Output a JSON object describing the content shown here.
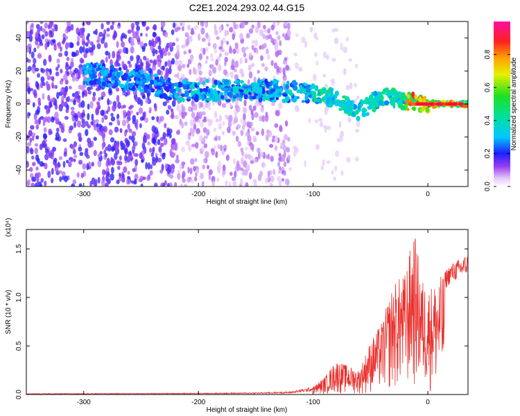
{
  "title": "C2E1.2024.293.02.44.G15",
  "chart_data": [
    {
      "type": "heatmap",
      "xlabel": "Height of straight line (km)",
      "ylabel": "Frequency (Hz)",
      "xlim": [
        -350,
        35
      ],
      "ylim": [
        -50,
        50
      ],
      "xticks": [
        -300,
        -200,
        -100,
        0
      ],
      "yticks": [
        -40,
        -20,
        0,
        20,
        40
      ],
      "colorbar": {
        "label": "Normalized spectral amplitude",
        "range": [
          0.0,
          1.0
        ],
        "ticks": [
          0.0,
          0.2,
          0.4,
          0.6,
          0.8
        ]
      },
      "ridge": {
        "description_points": [
          {
            "x": -290,
            "freq": 18
          },
          {
            "x": -250,
            "freq": 14
          },
          {
            "x": -220,
            "freq": 8
          },
          {
            "x": -180,
            "freq": 8
          },
          {
            "x": -140,
            "freq": 8
          },
          {
            "x": -100,
            "freq": 7
          },
          {
            "x": -80,
            "freq": 3
          },
          {
            "x": -60,
            "freq": -5
          },
          {
            "x": -40,
            "freq": 5
          },
          {
            "x": -20,
            "freq": 2
          },
          {
            "x": 0,
            "freq": 0
          },
          {
            "x": 35,
            "freq": 0
          }
        ]
      },
      "grid": false
    },
    {
      "type": "line",
      "xlabel": "Height of straight line (km)",
      "ylabel": "SNR (10 * v/v)",
      "y_multiplier": "(x10⁴)",
      "xlim": [
        -350,
        35
      ],
      "ylim": [
        0,
        1.7
      ],
      "xticks": [
        -300,
        -200,
        -100,
        0
      ],
      "yticks": [
        0.0,
        0.5,
        1.0,
        1.5
      ],
      "series": [
        {
          "color": "#e8302c",
          "envelope": [
            {
              "x": -350,
              "y": 0.01
            },
            {
              "x": -200,
              "y": 0.015
            },
            {
              "x": -150,
              "y": 0.02
            },
            {
              "x": -120,
              "y": 0.03
            },
            {
              "x": -100,
              "y": 0.08
            },
            {
              "x": -90,
              "y": 0.18
            },
            {
              "x": -80,
              "y": 0.35
            },
            {
              "x": -70,
              "y": 0.3
            },
            {
              "x": -60,
              "y": 0.25
            },
            {
              "x": -50,
              "y": 0.55
            },
            {
              "x": -40,
              "y": 0.75
            },
            {
              "x": -30,
              "y": 1.15
            },
            {
              "x": -20,
              "y": 1.25
            },
            {
              "x": -12,
              "y": 1.7
            },
            {
              "x": -5,
              "y": 1.2
            },
            {
              "x": 0,
              "y": 1.1
            },
            {
              "x": 10,
              "y": 1.2
            },
            {
              "x": 20,
              "y": 1.35
            },
            {
              "x": 35,
              "y": 1.45
            }
          ]
        }
      ],
      "grid": false
    }
  ]
}
